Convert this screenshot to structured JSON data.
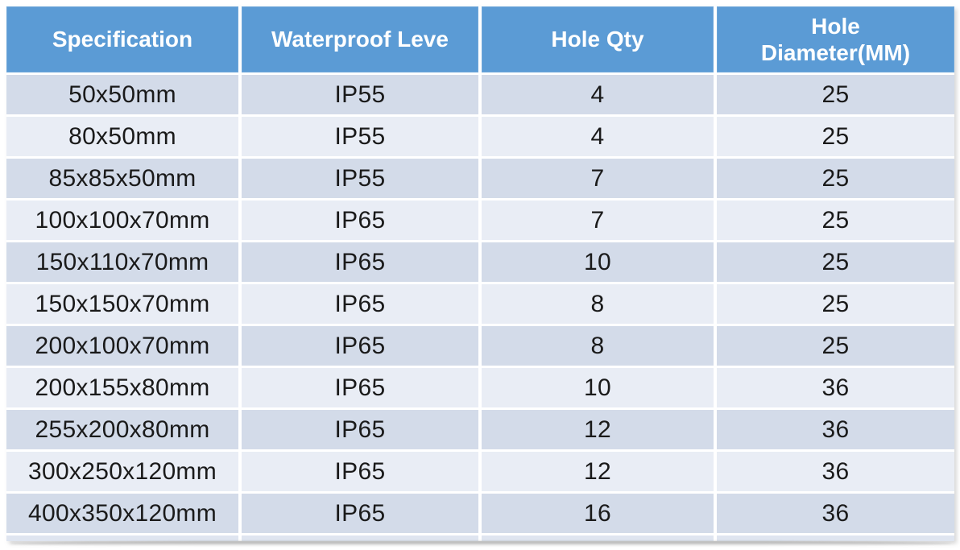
{
  "chart_data": {
    "type": "table",
    "title": "",
    "columns": [
      "Specification",
      "Waterproof Leve",
      "Hole Qty",
      "Hole Diameter(MM)"
    ],
    "rows": [
      [
        "50x50mm",
        "IP55",
        "4",
        "25"
      ],
      [
        "80x50mm",
        "IP55",
        "4",
        "25"
      ],
      [
        "85x85x50mm",
        "IP55",
        "7",
        "25"
      ],
      [
        "100x100x70mm",
        "IP65",
        "7",
        "25"
      ],
      [
        "150x110x70mm",
        "IP65",
        "10",
        "25"
      ],
      [
        "150x150x70mm",
        "IP65",
        "8",
        "25"
      ],
      [
        "200x100x70mm",
        "IP65",
        "8",
        "25"
      ],
      [
        "200x155x80mm",
        "IP65",
        "10",
        "36"
      ],
      [
        "255x200x80mm",
        "IP65",
        "12",
        "36"
      ],
      [
        "300x250x120mm",
        "IP65",
        "12",
        "36"
      ],
      [
        "400x350x120mm",
        "IP65",
        "16",
        "36"
      ]
    ],
    "layout": {
      "header_position": "top",
      "alternating_rows": true,
      "cell_alignment": "center"
    }
  },
  "colors": {
    "header_bg": "#5b9bd5",
    "header_text": "#ffffff",
    "row_odd": "#d3dbe9",
    "row_even": "#e9edf5",
    "row_cutoff": "#dfe5f0",
    "body_text": "#1a1a1a"
  }
}
